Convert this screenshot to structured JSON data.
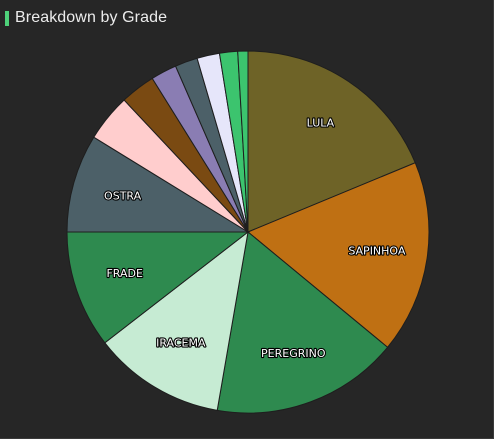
{
  "header": {
    "title": "Breakdown by Grade",
    "accent_color": "#4ed17a"
  },
  "chart_data": {
    "type": "pie",
    "title": "Breakdown by Grade",
    "start": "12 o'clock",
    "direction": "clockwise",
    "slices": [
      {
        "label": "LULA",
        "value": 18.6,
        "color": "#6e6327"
      },
      {
        "label": "SAPINHOA",
        "value": 17.1,
        "color": "#bf7013"
      },
      {
        "label": "PEREGRINO",
        "value": 16.6,
        "color": "#2e8a4f"
      },
      {
        "label": "IRACEMA",
        "value": 11.7,
        "color": "#c6ebd3"
      },
      {
        "label": "FRADE",
        "value": 10.4,
        "color": "#2e8a4f"
      },
      {
        "label": "OSTRA",
        "value": 8.7,
        "color": "#4c6068"
      },
      {
        "label": "",
        "value": 4.2,
        "color": "#ffcdcd"
      },
      {
        "label": "",
        "value": 3.1,
        "color": "#7a4a12"
      },
      {
        "label": "",
        "value": 2.3,
        "color": "#8a7db3"
      },
      {
        "label": "",
        "value": 2.0,
        "color": "#4c6068"
      },
      {
        "label": "",
        "value": 2.0,
        "color": "#e6e6fa"
      },
      {
        "label": "",
        "value": 1.6,
        "color": "#3cc46e"
      },
      {
        "label": "",
        "value": 0.9,
        "color": "#3cc46e"
      }
    ],
    "slice_border_color": "#1e1e1e"
  }
}
